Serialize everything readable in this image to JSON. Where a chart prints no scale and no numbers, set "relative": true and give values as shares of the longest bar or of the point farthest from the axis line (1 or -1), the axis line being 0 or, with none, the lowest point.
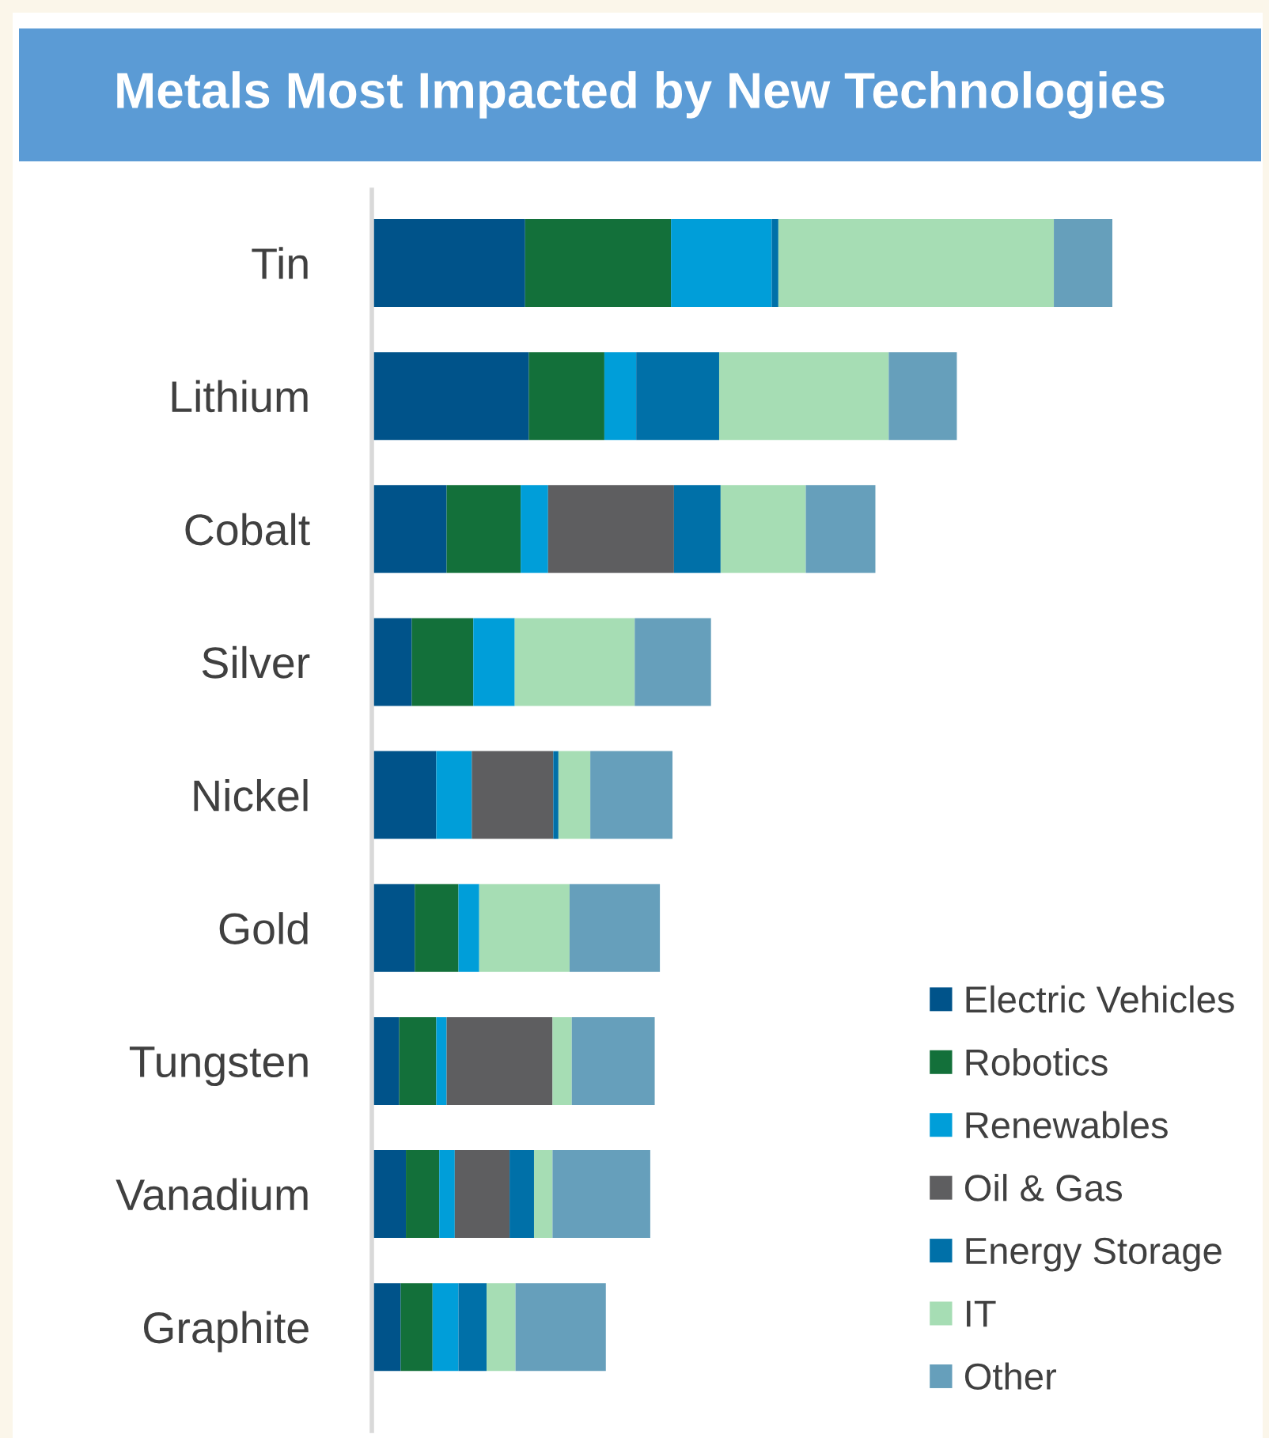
{
  "chart_data": {
    "type": "bar",
    "orientation": "horizontal",
    "stacked": true,
    "relative": true,
    "title": "Metals Most Impacted by New Technologies",
    "categories": [
      "Tin",
      "Lithium",
      "Cobalt",
      "Silver",
      "Nickel",
      "Gold",
      "Tungsten",
      "Vanadium",
      "Graphite"
    ],
    "series": [
      {
        "name": "Electric Vehicles",
        "color": "#00538a",
        "values": [
          0.207,
          0.212,
          0.101,
          0.054,
          0.087,
          0.058,
          0.037,
          0.046,
          0.039
        ]
      },
      {
        "name": "Robotics",
        "color": "#13703a",
        "values": [
          0.197,
          0.102,
          0.1,
          0.083,
          0,
          0.059,
          0.05,
          0.045,
          0.043
        ]
      },
      {
        "name": "Renewables",
        "color": "#009ed9",
        "values": [
          0.136,
          0.043,
          0.037,
          0.056,
          0.048,
          0.028,
          0.014,
          0.021,
          0.035
        ]
      },
      {
        "name": "Oil & Gas",
        "color": "#5e5e60",
        "values": [
          0,
          0,
          0.17,
          0,
          0.11,
          0,
          0.143,
          0.074,
          0
        ]
      },
      {
        "name": "Energy Storage",
        "color": "#0070a8",
        "values": [
          0.009,
          0.112,
          0.063,
          0,
          0.007,
          0,
          0,
          0.033,
          0.038
        ]
      },
      {
        "name": "IT",
        "color": "#a6ddb4",
        "values": [
          0.372,
          0.229,
          0.115,
          0.162,
          0.043,
          0.122,
          0.026,
          0.025,
          0.039
        ]
      },
      {
        "name": "Other",
        "color": "#669fbb",
        "values": [
          0.079,
          0.092,
          0.094,
          0.103,
          0.111,
          0.122,
          0.112,
          0.132,
          0.122
        ]
      }
    ],
    "legend": "bottom right",
    "grid": false
  }
}
